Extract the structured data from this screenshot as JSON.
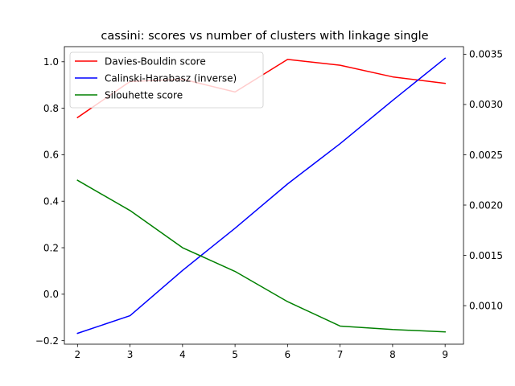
{
  "chart_data": {
    "type": "line",
    "title": "cassini: scores vs number of clusters with linkage single",
    "xlabel": "",
    "ylabel": "",
    "x": [
      2,
      3,
      4,
      5,
      6,
      7,
      8,
      9
    ],
    "xlim": [
      1.75,
      9.35
    ],
    "ylim": [
      -0.215,
      1.065
    ],
    "ylim_right": [
      0.000617,
      0.003575
    ],
    "x_ticks": [
      "2",
      "3",
      "4",
      "5",
      "6",
      "7",
      "8",
      "9"
    ],
    "y_ticks": [
      "−0.2",
      "0.0",
      "0.2",
      "0.4",
      "0.6",
      "0.8",
      "1.0"
    ],
    "y_ticks_right": [
      "0.0010",
      "0.0015",
      "0.0020",
      "0.0025",
      "0.0030",
      "0.0035"
    ],
    "legend_position": "top-left",
    "grid": false,
    "series": [
      {
        "name": "Davies-Bouldin score",
        "axis": "left",
        "color": "#ff0000",
        "values": [
          0.76,
          0.915,
          0.925,
          0.87,
          1.01,
          0.985,
          0.935,
          0.907
        ]
      },
      {
        "name": "Calinski-Harabasz (inverse)",
        "axis": "right",
        "color": "#0000ff",
        "values": [
          0.000725,
          0.0009,
          0.00135,
          0.00177,
          0.00221,
          0.00261,
          0.00304,
          0.00346
        ]
      },
      {
        "name": "Silouhette score",
        "axis": "left",
        "color": "#008000",
        "values": [
          0.49,
          0.36,
          0.2,
          0.098,
          -0.032,
          -0.137,
          -0.152,
          -0.162
        ]
      }
    ]
  }
}
